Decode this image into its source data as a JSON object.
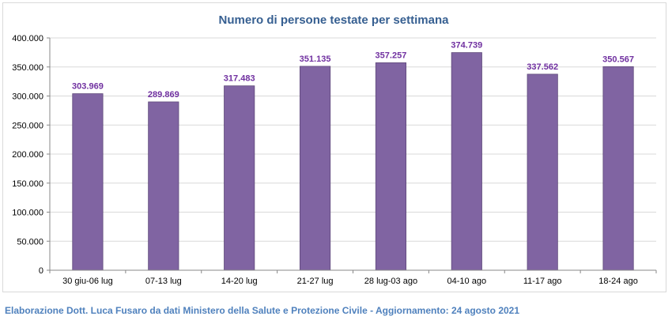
{
  "footer": {
    "note": "Elaborazione Dott. Luca Fusaro da dati Ministero della Salute e Protezione Civile - Aggiornamento: 24 agosto 2021"
  },
  "colors": {
    "bar": "#8064a2",
    "bar_edge": "#5f497a",
    "data_label": "#7030a0",
    "title": "#365f91",
    "grid": "#d9d9d9",
    "axis_text": "#000000",
    "footer": "#4f81bd"
  },
  "chart_data": {
    "type": "bar",
    "title": "Numero di persone testate per settimana",
    "xlabel": "",
    "ylabel": "",
    "categories": [
      "30 giu-06 lug",
      "07-13 lug",
      "14-20 lug",
      "21-27 lug",
      "28 lug-03 ago",
      "04-10 ago",
      "11-17 ago",
      "18-24 ago"
    ],
    "values": [
      303969,
      289869,
      317483,
      351135,
      357257,
      374739,
      337562,
      350567
    ],
    "value_labels": [
      "303.969",
      "289.869",
      "317.483",
      "351.135",
      "357.257",
      "374.739",
      "337.562",
      "350.567"
    ],
    "ylim": [
      0,
      400000
    ],
    "yticks": [
      0,
      50000,
      100000,
      150000,
      200000,
      250000,
      300000,
      350000,
      400000
    ],
    "ytick_labels": [
      "0",
      "50.000",
      "100.000",
      "150.000",
      "200.000",
      "250.000",
      "300.000",
      "350.000",
      "400.000"
    ],
    "grid": true,
    "legend": "none"
  }
}
